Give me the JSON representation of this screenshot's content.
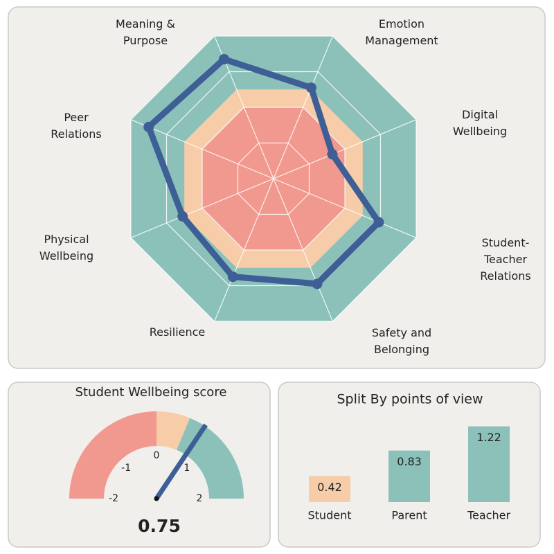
{
  "chart_data": [
    {
      "type": "radar",
      "categories": [
        "Meaning & Purpose",
        "Emotion Management",
        "Digital Wellbeing",
        "Student-Teacher Relations",
        "Safety and Belonging",
        "Resilience",
        "Physical Wellbeing",
        "Peer Relations"
      ],
      "series": [
        {
          "color": "#3e5f96",
          "values": [
            1.35,
            0.55,
            -0.35,
            0.95,
            0.95,
            0.75,
            0.55,
            1.5
          ]
        }
      ],
      "rlim": [
        -2,
        2
      ],
      "rgrid": [
        -1,
        0,
        1,
        2
      ],
      "bands": [
        {
          "from": -2,
          "to": 0,
          "color": "#f1998f"
        },
        {
          "from": 0,
          "to": 0.5,
          "color": "#f6cda8"
        },
        {
          "from": 0.5,
          "to": 2,
          "color": "#8bc1b9"
        }
      ]
    },
    {
      "type": "gauge",
      "title": "Student Wellbeing score",
      "value": 0.75,
      "lim": [
        -2,
        2
      ],
      "ticks": [
        -2,
        -1,
        0,
        1,
        2
      ],
      "needle_color": "#3e5f96",
      "bands": [
        {
          "from": -2,
          "to": 0,
          "color": "#f1998f"
        },
        {
          "from": 0,
          "to": 0.5,
          "color": "#f6cda8"
        },
        {
          "from": 0.5,
          "to": 2,
          "color": "#8bc1b9"
        }
      ]
    },
    {
      "type": "bar",
      "title": "Split By points of view",
      "categories": [
        "Student",
        "Parent",
        "Teacher"
      ],
      "values": [
        0.42,
        0.83,
        1.22
      ],
      "colors": [
        "#f6cda8",
        "#8bc1b9",
        "#8bc1b9"
      ],
      "ylim": [
        0,
        1.25
      ]
    }
  ]
}
